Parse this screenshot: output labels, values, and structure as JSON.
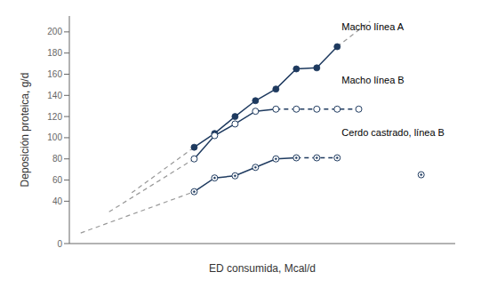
{
  "chart_data": {
    "type": "line",
    "xlabel": "ED consumida, Mcal/d",
    "ylabel": "Deposición proteica, g/d",
    "xlim": [
      3.0,
      6.4
    ],
    "ylim": [
      0,
      215
    ],
    "yticks": [
      0,
      40,
      60,
      80,
      100,
      120,
      140,
      160,
      180,
      200
    ],
    "tick_labels": "y",
    "grid": false,
    "series": [
      {
        "type": "line",
        "color": "#999999",
        "line_style": "dashed",
        "marker": "none",
        "x": [
          3.55,
          4.1
        ],
        "values": [
          48,
          91
        ]
      },
      {
        "type": "line",
        "color": "#999999",
        "line_style": "dashed",
        "marker": "none",
        "x": [
          5.36,
          5.65
        ],
        "values": [
          186,
          210
        ]
      },
      {
        "type": "line",
        "color": "#999999",
        "line_style": "dashed",
        "marker": "none",
        "x": [
          3.35,
          4.1
        ],
        "values": [
          30,
          80
        ]
      },
      {
        "type": "line",
        "color": "#999999",
        "line_style": "dashed",
        "marker": "none",
        "x": [
          3.1,
          4.1
        ],
        "values": [
          10,
          49
        ]
      },
      {
        "type": "line",
        "color": "#1e3a5f",
        "line_style": "solid",
        "marker": "filled_circle",
        "x": [
          4.1,
          4.28,
          4.46,
          4.64,
          4.82,
          5.0,
          5.18,
          5.36
        ],
        "values": [
          91,
          104,
          120,
          135,
          146,
          165,
          166,
          186
        ]
      },
      {
        "type": "line",
        "color": "#1e3a5f",
        "line_style": "solid",
        "marker": "none",
        "x": [
          4.1,
          4.28,
          4.46,
          4.64,
          4.82
        ],
        "values": [
          80,
          102,
          113,
          125,
          127
        ]
      },
      {
        "type": "line",
        "color": "#1e3a5f",
        "line_style": "dashed",
        "marker": "none",
        "x": [
          4.82,
          5.55
        ],
        "values": [
          127,
          127
        ]
      },
      {
        "type": "line",
        "color": "#1e3a5f",
        "line_style": "solid",
        "marker": "none",
        "x": [
          4.1,
          4.28,
          4.46,
          4.64,
          4.82,
          5.0
        ],
        "values": [
          49,
          62,
          64,
          72,
          80,
          81
        ]
      },
      {
        "type": "line",
        "color": "#1e3a5f",
        "line_style": "dashed",
        "marker": "none",
        "x": [
          5.0,
          5.36
        ],
        "values": [
          81,
          81
        ]
      },
      {
        "type": "scatter",
        "color": "#1e3a5f",
        "marker": "open_circle",
        "x": [
          4.1,
          4.28,
          4.46,
          4.64,
          4.82,
          5.0,
          5.18,
          5.36,
          5.55
        ],
        "values": [
          80,
          102,
          113,
          125,
          127,
          127,
          127,
          127,
          127
        ]
      },
      {
        "type": "scatter",
        "color": "#1e3a5f",
        "marker": "dotted_circle",
        "x": [
          4.1,
          4.28,
          4.46,
          4.64,
          4.82,
          5.0,
          5.18,
          5.36,
          6.1
        ],
        "values": [
          49,
          62,
          64,
          72,
          80,
          81,
          81,
          81,
          65
        ]
      }
    ],
    "annotations": [
      {
        "text": "Macho línea A",
        "x": 5.4,
        "y": 208
      },
      {
        "text": "Macho línea B",
        "x": 5.4,
        "y": 158
      },
      {
        "text": "Cerdo castrado, línea B",
        "x": 5.4,
        "y": 108
      }
    ]
  }
}
